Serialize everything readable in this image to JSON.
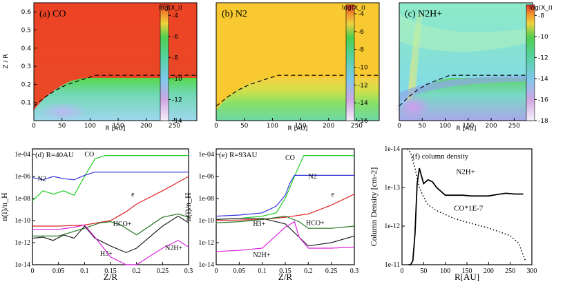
{
  "chart_data": [
    {
      "type": "heatmap",
      "title": "(a) CO",
      "xlabel": "R [AU]",
      "ylabel": "Z / R",
      "xlim": [
        0,
        290
      ],
      "ylim": [
        0,
        0.65
      ],
      "xticks": [
        "0",
        "50",
        "100",
        "150",
        "200",
        "250"
      ],
      "yticks": [
        "0.1",
        "0.2",
        "0.3",
        "0.4",
        "0.5",
        "0.6"
      ],
      "colorbar": {
        "label": "log(X_i)",
        "min": -14,
        "max": -3,
        "ticks": [
          "-4",
          "-6",
          "-8",
          "-10",
          "-12",
          "-14"
        ]
      },
      "boundary_curve": [
        [
          0,
          0.08
        ],
        [
          20,
          0.13
        ],
        [
          40,
          0.17
        ],
        [
          60,
          0.2
        ],
        [
          80,
          0.22
        ],
        [
          110,
          0.25
        ],
        [
          150,
          0.25
        ],
        [
          200,
          0.25
        ],
        [
          290,
          0.25
        ]
      ]
    },
    {
      "type": "heatmap",
      "title": "(b) N2",
      "xlabel": "R [AU]",
      "ylabel": "",
      "xlim": [
        0,
        290
      ],
      "ylim": [
        0,
        0.65
      ],
      "xticks": [
        "0",
        "50",
        "100",
        "150",
        "200",
        "250"
      ],
      "colorbar": {
        "label": "log(X_i)",
        "min": -16,
        "max": -3,
        "ticks": [
          "-4",
          "-6",
          "-8",
          "-10",
          "-12",
          "-14",
          "-16"
        ]
      },
      "boundary_curve": [
        [
          0,
          0.08
        ],
        [
          20,
          0.13
        ],
        [
          40,
          0.17
        ],
        [
          60,
          0.2
        ],
        [
          80,
          0.22
        ],
        [
          110,
          0.25
        ],
        [
          150,
          0.25
        ],
        [
          200,
          0.25
        ],
        [
          290,
          0.25
        ]
      ]
    },
    {
      "type": "heatmap",
      "title": "(c) N2H+",
      "xlabel": "R [AU]",
      "ylabel": "",
      "xlim": [
        0,
        290
      ],
      "ylim": [
        0,
        0.65
      ],
      "xticks": [
        "0",
        "50",
        "100",
        "150",
        "200",
        "250"
      ],
      "colorbar": {
        "label": "log(X_i)",
        "min": -18,
        "max": -7,
        "ticks": [
          "-8",
          "-10",
          "-12",
          "-14",
          "-16",
          "-18"
        ]
      },
      "boundary_curve": [
        [
          0,
          0.08
        ],
        [
          20,
          0.13
        ],
        [
          40,
          0.17
        ],
        [
          60,
          0.2
        ],
        [
          80,
          0.22
        ],
        [
          110,
          0.25
        ],
        [
          150,
          0.25
        ],
        [
          200,
          0.25
        ],
        [
          290,
          0.25
        ]
      ]
    },
    {
      "type": "line",
      "title": "(d) R=40AU",
      "xlabel": "Z/R",
      "ylabel": "n(i)/n_H",
      "xlim": [
        0,
        0.3
      ],
      "ylim_log10": [
        -14,
        -3.5
      ],
      "xticks": [
        "0",
        "0.05",
        "0.1",
        "0.15",
        "0.2",
        "0.25",
        "0.3"
      ],
      "yticks": [
        "1e-04",
        "1e-06",
        "1e-08",
        "1e-10",
        "1e-12",
        "1e-14"
      ],
      "series": [
        {
          "name": "CO",
          "color": "#22cc22",
          "label_at": [
            0.1,
            -4.2
          ],
          "x": [
            0,
            0.02,
            0.04,
            0.06,
            0.08,
            0.1,
            0.12,
            0.14,
            0.3
          ],
          "y": [
            -8.2,
            -7.3,
            -7.6,
            -7.3,
            -7.7,
            -6.0,
            -4.4,
            -4.1,
            -4.1
          ]
        },
        {
          "name": "N2",
          "color": "#3333dd",
          "label_at": [
            0.01,
            -6.4
          ],
          "x": [
            0,
            0.02,
            0.04,
            0.06,
            0.08,
            0.1,
            0.12,
            0.3
          ],
          "y": [
            -6.1,
            -6.3,
            -6.0,
            -6.2,
            -6.3,
            -5.9,
            -5.6,
            -5.6
          ]
        },
        {
          "name": "e",
          "color": "#dd2222",
          "label_at": [
            0.19,
            -7.8
          ],
          "x": [
            0,
            0.05,
            0.1,
            0.15,
            0.18,
            0.2,
            0.25,
            0.3
          ],
          "y": [
            -10.5,
            -10.5,
            -10.4,
            -10.0,
            -9.2,
            -8.5,
            -7.3,
            -6.0
          ]
        },
        {
          "name": "HCO+",
          "color": "#227722",
          "label_at": [
            0.155,
            -10.5
          ],
          "x": [
            0,
            0.05,
            0.1,
            0.13,
            0.15,
            0.17,
            0.2,
            0.25,
            0.28,
            0.3
          ],
          "y": [
            -11.4,
            -11.4,
            -10.7,
            -10.2,
            -10.1,
            -10.4,
            -11.3,
            -9.7,
            -9.4,
            -9.7
          ]
        },
        {
          "name": "H3+",
          "color": "#222222",
          "label_at": [
            0.13,
            -13.2
          ],
          "x": [
            0,
            0.02,
            0.04,
            0.06,
            0.08,
            0.1,
            0.12,
            0.15,
            0.18,
            0.2,
            0.25,
            0.28,
            0.3
          ],
          "y": [
            -11.6,
            -11.5,
            -11.8,
            -11.3,
            -11.6,
            -10.5,
            -11.6,
            -12.3,
            -12.9,
            -12.5,
            -10.5,
            -9.6,
            -10.2
          ]
        },
        {
          "name": "N2H+",
          "color": "#dd22dd",
          "label_at": [
            0.255,
            -12.7
          ],
          "x": [
            0,
            0.05,
            0.08,
            0.1,
            0.12,
            0.15,
            0.18,
            0.2,
            0.25,
            0.28,
            0.3
          ],
          "y": [
            -10.8,
            -10.8,
            -10.6,
            -10.4,
            -11.5,
            -13.3,
            -14.2,
            -14.2,
            -12.5,
            -11.8,
            -12.4
          ]
        }
      ]
    },
    {
      "type": "line",
      "title": "(e) R=93AU",
      "xlabel": "Z/R",
      "ylabel": "n(i)/n_H",
      "xlim": [
        0,
        0.3
      ],
      "ylim_log10": [
        -14,
        -3.5
      ],
      "xticks": [
        "0",
        "0.05",
        "0.1",
        "0.15",
        "0.2",
        "0.25",
        "0.3"
      ],
      "yticks": [
        "1e-04",
        "1e-06",
        "1e-08",
        "1e-10",
        "1e-12",
        "1e-14"
      ],
      "series": [
        {
          "name": "CO",
          "color": "#22cc22",
          "label_at": [
            0.15,
            -4.5
          ],
          "x": [
            0,
            0.05,
            0.1,
            0.13,
            0.15,
            0.17,
            0.19,
            0.3
          ],
          "y": [
            -9.9,
            -9.8,
            -9.6,
            -9.3,
            -8.0,
            -6.0,
            -4.1,
            -4.1
          ]
        },
        {
          "name": "N2",
          "color": "#3333dd",
          "label_at": [
            0.2,
            -6.2
          ],
          "x": [
            0,
            0.05,
            0.1,
            0.13,
            0.15,
            0.16,
            0.17,
            0.3
          ],
          "y": [
            -9.6,
            -9.5,
            -9.3,
            -8.7,
            -7.7,
            -6.6,
            -5.9,
            -5.9
          ]
        },
        {
          "name": "e",
          "color": "#dd2222",
          "label_at": [
            0.25,
            -7.8
          ],
          "x": [
            0,
            0.05,
            0.1,
            0.15,
            0.2,
            0.25,
            0.3
          ],
          "y": [
            -10.0,
            -9.95,
            -9.9,
            -9.7,
            -9.4,
            -8.6,
            -7.6
          ]
        },
        {
          "name": "HCO+",
          "color": "#227722",
          "label_at": [
            0.195,
            -10.4
          ],
          "x": [
            0,
            0.05,
            0.1,
            0.15,
            0.18,
            0.2,
            0.25,
            0.3
          ],
          "y": [
            -10.2,
            -10.1,
            -9.9,
            -9.6,
            -10.1,
            -10.7,
            -10.7,
            -10.5
          ]
        },
        {
          "name": "H3+",
          "color": "#222222",
          "label_at": [
            0.08,
            -10.5
          ],
          "x": [
            0,
            0.05,
            0.1,
            0.15,
            0.18,
            0.2,
            0.25,
            0.3
          ],
          "y": [
            -9.9,
            -9.8,
            -9.8,
            -10.3,
            -11.5,
            -12.3,
            -12.0,
            -11.4
          ]
        },
        {
          "name": "N2H+",
          "color": "#dd22dd",
          "label_at": [
            0.08,
            -13.3
          ],
          "x": [
            0,
            0.05,
            0.1,
            0.15,
            0.17,
            0.18,
            0.2,
            0.25,
            0.3
          ],
          "y": [
            -12.8,
            -12.7,
            -12.5,
            -10.6,
            -10.1,
            -11.5,
            -12.5,
            -12.5,
            -12.4
          ]
        }
      ]
    },
    {
      "type": "line",
      "title": "(f) column density",
      "xlabel": "R[AU]",
      "ylabel": "Column Density [cm-2]",
      "xlim": [
        0,
        300
      ],
      "ylim_log10": [
        -11,
        -14
      ],
      "xticks": [
        "0",
        "50",
        "100",
        "150",
        "200",
        "250",
        "300"
      ],
      "yticks": [
        "1e-14",
        "1e-13",
        "1e-12",
        "1e-11"
      ],
      "series": [
        {
          "name": "N2H+",
          "style": "solid",
          "label_at": [
            125,
            -13.35
          ],
          "x": [
            15,
            20,
            25,
            30,
            35,
            40,
            45,
            50,
            60,
            70,
            80,
            90,
            100,
            110,
            120,
            140,
            160,
            180,
            200,
            220,
            240,
            260,
            280
          ],
          "y": [
            -11.0,
            -11.0,
            -11.1,
            -11.8,
            -13.1,
            -13.5,
            -13.3,
            -13.1,
            -13.2,
            -13.15,
            -13.0,
            -12.9,
            -12.8,
            -12.8,
            -12.8,
            -12.8,
            -12.78,
            -12.78,
            -12.78,
            -12.82,
            -12.85,
            -12.83,
            -12.83
          ]
        },
        {
          "name": "CO*1E-7",
          "style": "dotted",
          "label_at": [
            120,
            -12.4
          ],
          "x": [
            12,
            20,
            30,
            40,
            50,
            60,
            80,
            100,
            120,
            150,
            200,
            250,
            270,
            285
          ],
          "y": [
            -14.2,
            -13.9,
            -13.5,
            -13.0,
            -12.75,
            -12.55,
            -12.4,
            -12.3,
            -12.2,
            -12.1,
            -11.95,
            -11.75,
            -11.55,
            -11.1
          ]
        }
      ]
    }
  ]
}
